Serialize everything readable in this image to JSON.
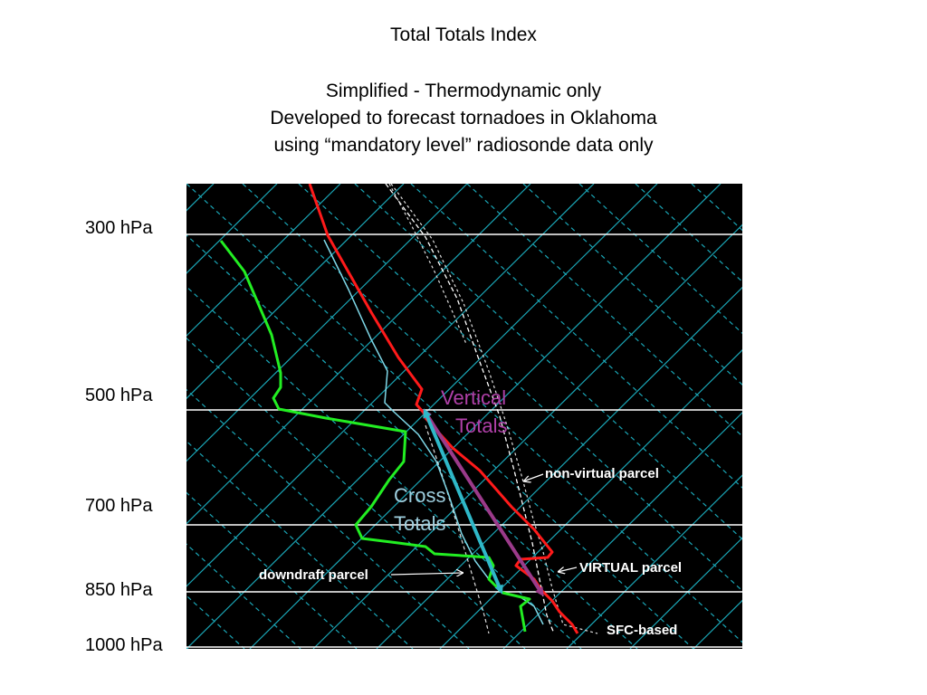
{
  "title": "Total Totals Index",
  "subtitle_lines": [
    "Simplified - Thermodynamic only",
    "Developed to forecast tornadoes in Oklahoma",
    "using “mandatory level” radiosonde data only"
  ],
  "pressure_levels": [
    {
      "label": "300 hPa"
    },
    {
      "label": "500 hPa"
    },
    {
      "label": "700 hPa"
    },
    {
      "label": "850 hPa"
    },
    {
      "label": "1000 hPa"
    }
  ],
  "annotations": {
    "vertical_totals": [
      "Vertical",
      "Totals"
    ],
    "cross_totals": [
      "Cross",
      "Totals"
    ],
    "non_virtual_parcel": "non-virtual parcel",
    "virtual_parcel": "VIRTUAL parcel",
    "downdraft_parcel": "downdraft parcel",
    "sfc_based": "SFC-based"
  },
  "colors": {
    "background": "#000000",
    "temperature": "#ff1a1a",
    "dewpoint": "#22ee22",
    "wetbulb": "#7fd8e8",
    "isotherm": "#1aa5b5",
    "isobar": "#ffffff",
    "vertical_totals_arrow": "#9b3a8a",
    "cross_totals_arrow": "#2fb8c8"
  }
}
